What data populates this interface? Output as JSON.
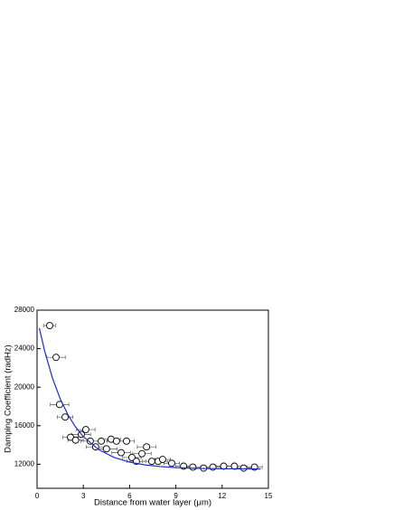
{
  "chart_data": {
    "type": "scatter",
    "xlabel": "Distance from water layer (μm)",
    "ylabel": "Damping Coefficient (radHz)",
    "xlim": [
      0,
      15
    ],
    "xticks": [
      0,
      3,
      6,
      9,
      12,
      15
    ],
    "ylim": [
      9500,
      28000
    ],
    "yticks": [
      12000,
      16000,
      20000,
      24000,
      28000
    ],
    "series": [
      {
        "type": "scatter",
        "color": "#000000",
        "x": [
          0.82,
          1.23,
          1.46,
          1.82,
          2.17,
          2.5,
          2.87,
          3.16,
          3.45,
          3.8,
          4.16,
          4.5,
          4.8,
          5.15,
          5.45,
          5.8,
          6.15,
          6.44,
          6.8,
          7.1,
          7.44,
          7.85,
          8.14,
          8.73,
          9.5,
          10.1,
          10.8,
          11.4,
          12.1,
          12.8,
          13.4,
          14.1
        ],
        "values": [
          26400,
          23100,
          18200,
          16900,
          14800,
          14500,
          15100,
          15600,
          14400,
          13800,
          14400,
          13600,
          14600,
          14400,
          13200,
          14400,
          12700,
          12300,
          13100,
          13800,
          12300,
          12300,
          12500,
          12100,
          11800,
          11700,
          11600,
          11700,
          11800,
          11800,
          11600,
          11700
        ],
        "xerr": [
          0.4,
          0.6,
          0.6,
          0.5,
          0.5,
          0.5,
          0.6,
          0.6,
          0.6,
          0.6,
          0.7,
          0.7,
          0.6,
          0.6,
          0.6,
          0.5,
          0.6,
          0.6,
          0.6,
          0.6,
          0.6,
          0.6,
          0.5,
          0.5,
          0.5,
          0.5,
          0.5,
          0.5,
          0.5,
          0.5,
          0.5,
          0.5
        ]
      },
      {
        "type": "line",
        "color": "#1f2bc8",
        "x": [
          0.15,
          0.5,
          1,
          1.5,
          2,
          2.5,
          3,
          4,
          5,
          6,
          7,
          8,
          9,
          10,
          11,
          12,
          13,
          14.5
        ],
        "values": [
          26130,
          23710,
          20940,
          18790,
          17140,
          15860,
          14870,
          13510,
          12700,
          12220,
          11930,
          11760,
          11650,
          11590,
          11550,
          11530,
          11520,
          11510
        ]
      }
    ]
  }
}
